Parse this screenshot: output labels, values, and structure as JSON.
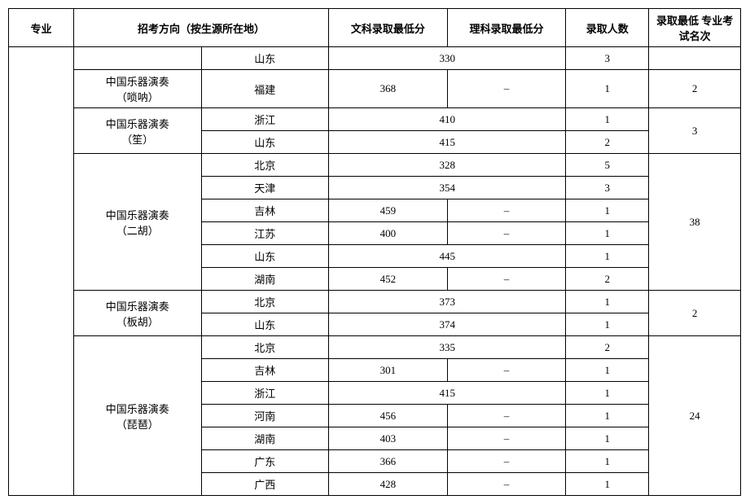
{
  "headers": {
    "major": "专业",
    "dir": "招考方向（按生源所在地）",
    "wen": "文科录取最低分",
    "li": "理科录取最低分",
    "cnt": "录取人数",
    "rank": "录取最低\n专业考试名次"
  },
  "rows": [
    {
      "direction": "",
      "province": "山东",
      "wen": "330",
      "li": null,
      "merged": true,
      "count": "3",
      "rank": ""
    },
    {
      "direction": "中国乐器演奏\n（唢呐）",
      "province": "福建",
      "wen": "368",
      "li": "–",
      "merged": false,
      "count": "1",
      "rank": "2"
    },
    {
      "direction": "中国乐器演奏\n（笙）",
      "province": "浙江",
      "wen": "410",
      "li": null,
      "merged": true,
      "count": "1",
      "rank": "3",
      "dirSpan": 2,
      "rankSpan": 2
    },
    {
      "direction": null,
      "province": "山东",
      "wen": "415",
      "li": null,
      "merged": true,
      "count": "2",
      "rank": null
    },
    {
      "direction": "中国乐器演奏\n（二胡）",
      "province": "北京",
      "wen": "328",
      "li": null,
      "merged": true,
      "count": "5",
      "rank": "38",
      "dirSpan": 6,
      "rankSpan": 6
    },
    {
      "direction": null,
      "province": "天津",
      "wen": "354",
      "li": null,
      "merged": true,
      "count": "3",
      "rank": null
    },
    {
      "direction": null,
      "province": "吉林",
      "wen": "459",
      "li": "–",
      "merged": false,
      "count": "1",
      "rank": null
    },
    {
      "direction": null,
      "province": "江苏",
      "wen": "400",
      "li": "–",
      "merged": false,
      "count": "1",
      "rank": null
    },
    {
      "direction": null,
      "province": "山东",
      "wen": "445",
      "li": null,
      "merged": true,
      "count": "1",
      "rank": null
    },
    {
      "direction": null,
      "province": "湖南",
      "wen": "452",
      "li": "–",
      "merged": false,
      "count": "2",
      "rank": null
    },
    {
      "direction": "中国乐器演奏\n（板胡）",
      "province": "北京",
      "wen": "373",
      "li": null,
      "merged": true,
      "count": "1",
      "rank": "2",
      "dirSpan": 2,
      "rankSpan": 2
    },
    {
      "direction": null,
      "province": "山东",
      "wen": "374",
      "li": null,
      "merged": true,
      "count": "1",
      "rank": null
    },
    {
      "direction": "中国乐器演奏\n（琵琶）",
      "province": "北京",
      "wen": "335",
      "li": null,
      "merged": true,
      "count": "2",
      "rank": "24",
      "dirSpan": 7,
      "rankSpan": 7
    },
    {
      "direction": null,
      "province": "吉林",
      "wen": "301",
      "li": "–",
      "merged": false,
      "count": "1",
      "rank": null
    },
    {
      "direction": null,
      "province": "浙江",
      "wen": "415",
      "li": null,
      "merged": true,
      "count": "1",
      "rank": null
    },
    {
      "direction": null,
      "province": "河南",
      "wen": "456",
      "li": "–",
      "merged": false,
      "count": "1",
      "rank": null
    },
    {
      "direction": null,
      "province": "湖南",
      "wen": "403",
      "li": "–",
      "merged": false,
      "count": "1",
      "rank": null
    },
    {
      "direction": null,
      "province": "广东",
      "wen": "366",
      "li": "–",
      "merged": false,
      "count": "1",
      "rank": null
    },
    {
      "direction": null,
      "province": "广西",
      "wen": "428",
      "li": "–",
      "merged": false,
      "count": "1",
      "rank": null
    }
  ]
}
